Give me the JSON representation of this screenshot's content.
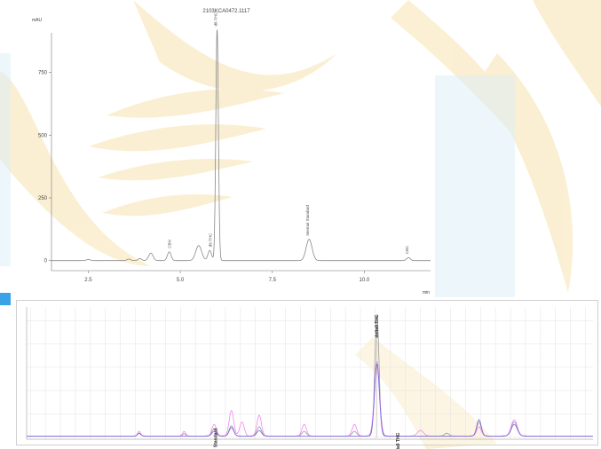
{
  "chart_data": [
    {
      "type": "line",
      "title": "2103KCA0472.1117",
      "ylabel": "mAU",
      "xlabel": "min",
      "xlim": [
        1.5,
        11.8
      ],
      "ylim": [
        -40,
        950
      ],
      "xticks": [
        2.5,
        5.0,
        7.5,
        10.0
      ],
      "xtick_labels": [
        "2.5",
        "5.0",
        "7.5",
        "10.0"
      ],
      "yticks": [
        0,
        250,
        500,
        750
      ],
      "ytick_labels": [
        "0",
        "250",
        "500",
        "750"
      ],
      "grid": false,
      "series": [
        {
          "color": "#888888",
          "peaks": [
            {
              "x": 2.5,
              "h": 4,
              "w": 0.06
            },
            {
              "x": 3.6,
              "h": 6,
              "w": 0.05
            },
            {
              "x": 3.9,
              "h": 8,
              "w": 0.05
            },
            {
              "x": 4.2,
              "h": 30,
              "w": 0.06
            },
            {
              "x": 4.7,
              "h": 35,
              "w": 0.05
            },
            {
              "x": 5.5,
              "h": 60,
              "w": 0.08
            },
            {
              "x": 5.8,
              "h": 40,
              "w": 0.05
            },
            {
              "x": 6.0,
              "h": 920,
              "w": 0.035
            },
            {
              "x": 8.5,
              "h": 85,
              "w": 0.08
            },
            {
              "x": 11.2,
              "h": 12,
              "w": 0.05
            }
          ]
        }
      ],
      "annotations": [
        {
          "x": 4.75,
          "y": 35,
          "text": "CBN"
        },
        {
          "x": 5.85,
          "y": 40,
          "text": "d9-THC"
        },
        {
          "x": 6.0,
          "y": 920,
          "text": "d8-THC"
        },
        {
          "x": 8.5,
          "y": 85,
          "text": "Internal Standard"
        },
        {
          "x": 11.2,
          "y": 12,
          "text": "CBC"
        }
      ]
    },
    {
      "type": "line",
      "xlim": [
        3.35,
        10.9
      ],
      "ylim": [
        -0.05,
        2.8
      ],
      "xticks": [
        3.4,
        3.6,
        3.8,
        4.0,
        4.2,
        4.4,
        4.6,
        4.8,
        5.0,
        5.2,
        5.4,
        5.6,
        5.8,
        6.0,
        6.2,
        6.4,
        6.6,
        6.8,
        7.0,
        7.2,
        7.4,
        7.6,
        7.8,
        8.0,
        8.2,
        8.4,
        8.6,
        8.8,
        9.0,
        9.2,
        9.4,
        9.6,
        9.8,
        10.0,
        10.2,
        10.4,
        10.6,
        10.8
      ],
      "yticks": [
        0.0,
        0.5,
        1.0,
        1.5,
        2.0,
        2.5
      ],
      "grid": true,
      "series": [
        {
          "color": "#999999",
          "peaks": [
            {
              "x": 4.85,
              "h": 0.06,
              "w": 0.02
            },
            {
              "x": 5.45,
              "h": 0.05,
              "w": 0.02
            },
            {
              "x": 5.85,
              "h": 0.15,
              "w": 0.03
            },
            {
              "x": 6.08,
              "h": 0.22,
              "w": 0.03
            },
            {
              "x": 6.45,
              "h": 0.2,
              "w": 0.03
            },
            {
              "x": 7.05,
              "h": 0.1,
              "w": 0.03
            },
            {
              "x": 7.72,
              "h": 0.1,
              "w": 0.03
            },
            {
              "x": 8.02,
              "h": 2.6,
              "w": 0.028
            },
            {
              "x": 8.95,
              "h": 0.06,
              "w": 0.03
            },
            {
              "x": 9.38,
              "h": 0.3,
              "w": 0.03
            },
            {
              "x": 9.85,
              "h": 0.3,
              "w": 0.04
            }
          ]
        },
        {
          "color": "#ee88ee",
          "peaks": [
            {
              "x": 4.85,
              "h": 0.1,
              "w": 0.02
            },
            {
              "x": 5.45,
              "h": 0.1,
              "w": 0.02
            },
            {
              "x": 5.85,
              "h": 0.25,
              "w": 0.03
            },
            {
              "x": 6.08,
              "h": 0.55,
              "w": 0.03
            },
            {
              "x": 6.22,
              "h": 0.3,
              "w": 0.03
            },
            {
              "x": 6.45,
              "h": 0.45,
              "w": 0.03
            },
            {
              "x": 7.05,
              "h": 0.25,
              "w": 0.03
            },
            {
              "x": 7.72,
              "h": 0.25,
              "w": 0.03
            },
            {
              "x": 8.02,
              "h": 1.6,
              "w": 0.035
            },
            {
              "x": 8.6,
              "h": 0.12,
              "w": 0.04
            },
            {
              "x": 9.38,
              "h": 0.2,
              "w": 0.03
            },
            {
              "x": 9.85,
              "h": 0.35,
              "w": 0.04
            }
          ]
        },
        {
          "color": "#7766dd",
          "peaks": [
            {
              "x": 4.85,
              "h": 0.06,
              "w": 0.02
            },
            {
              "x": 5.85,
              "h": 0.1,
              "w": 0.03
            },
            {
              "x": 6.08,
              "h": 0.18,
              "w": 0.03
            },
            {
              "x": 6.45,
              "h": 0.12,
              "w": 0.03
            },
            {
              "x": 8.02,
              "h": 1.55,
              "w": 0.032
            },
            {
              "x": 9.38,
              "h": 0.35,
              "w": 0.03
            },
            {
              "x": 9.85,
              "h": 0.25,
              "w": 0.04
            }
          ]
        }
      ],
      "annotations": [
        {
          "x": 5.87,
          "y": 0.15,
          "text": "Internal Standard"
        },
        {
          "x": 8.02,
          "y": 2.6,
          "text": "delta9 THC"
        },
        {
          "x": 8.3,
          "y": 0.05,
          "text": "delta8 THC"
        }
      ]
    }
  ]
}
